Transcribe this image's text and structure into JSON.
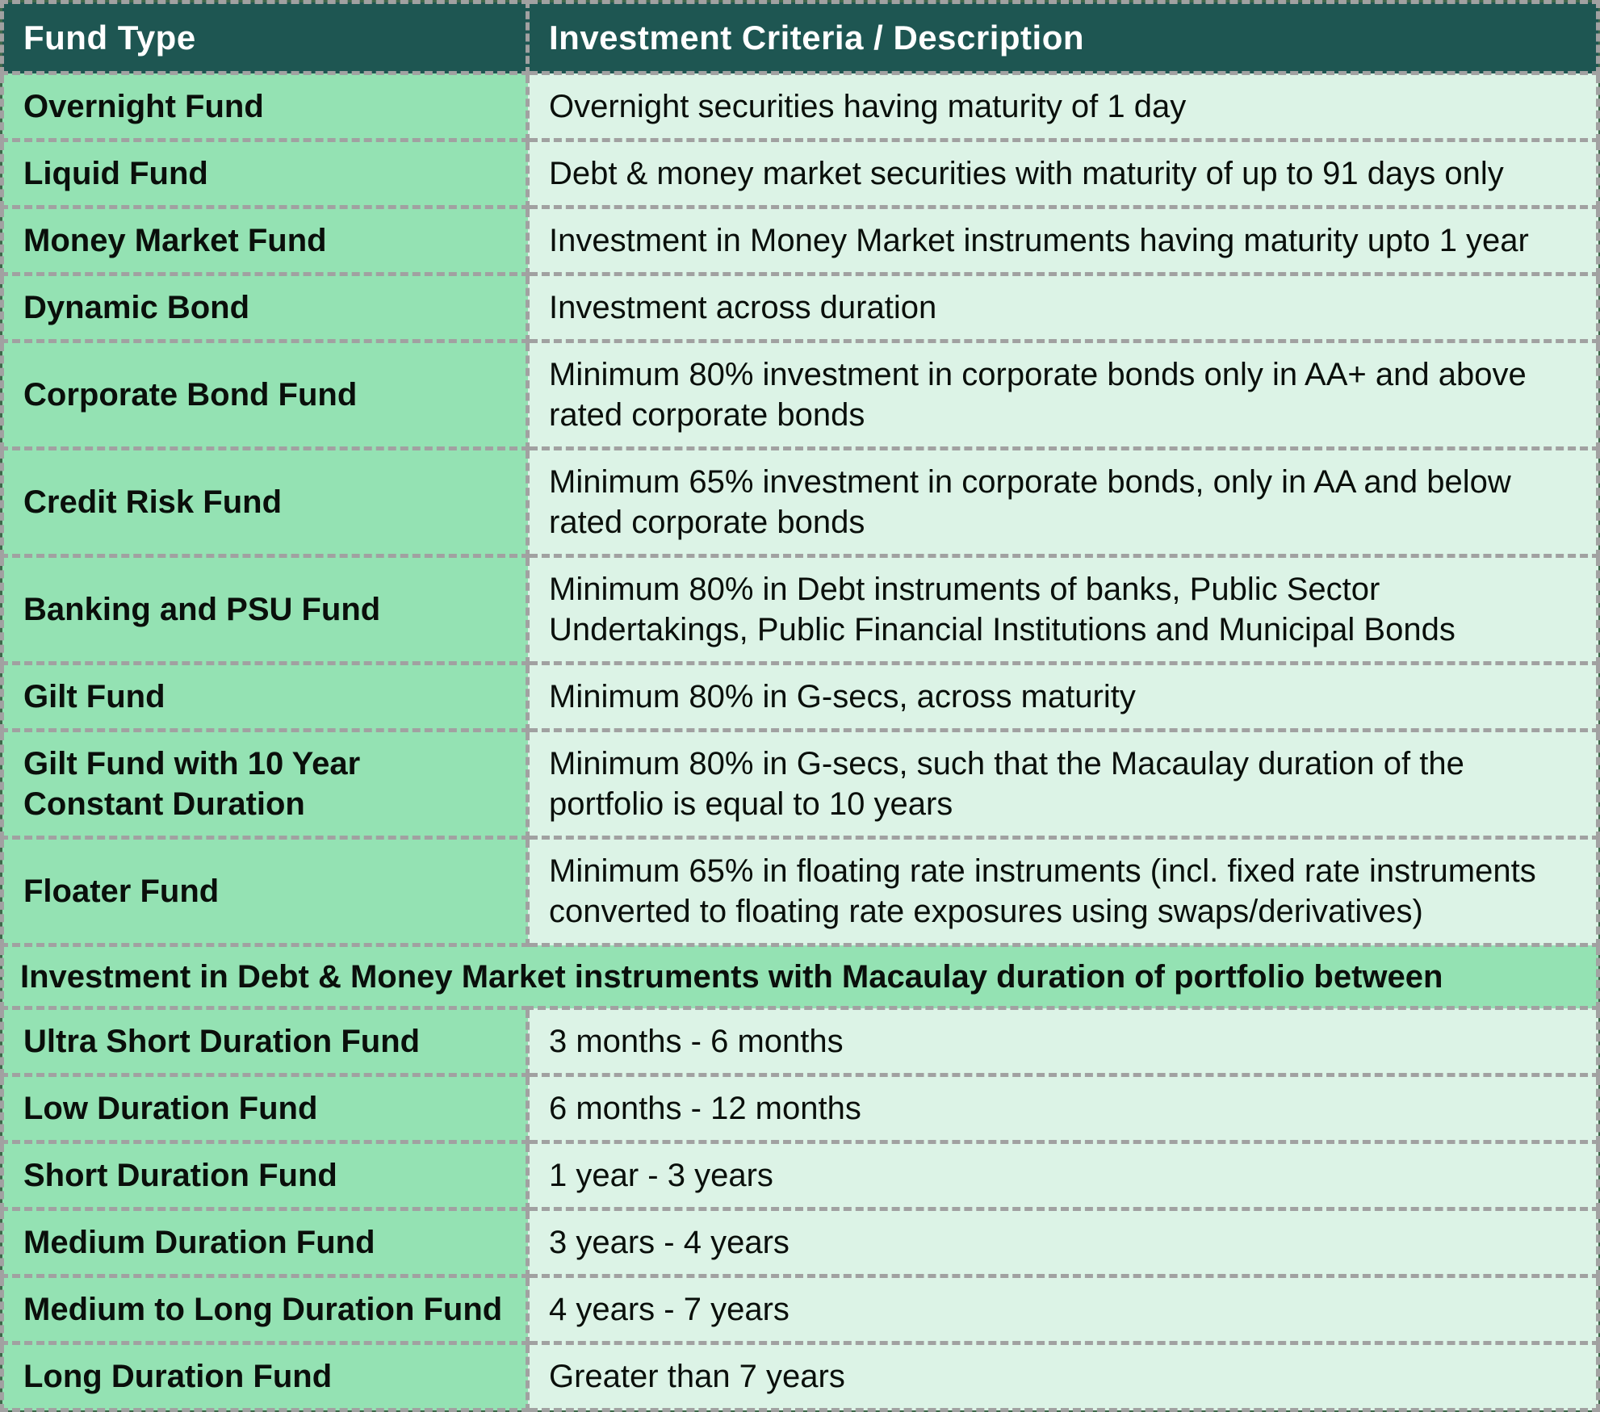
{
  "chart_data": {
    "type": "table",
    "columns": [
      "Fund Type",
      "Investment Criteria / Description"
    ],
    "rows": [
      {
        "fund": "Overnight Fund",
        "desc": "Overnight securities having maturity of 1 day"
      },
      {
        "fund": "Liquid Fund",
        "desc": "Debt & money market securities with maturity of up to 91 days only"
      },
      {
        "fund": "Money Market Fund",
        "desc": "Investment in Money Market instruments having maturity upto 1 year"
      },
      {
        "fund": "Dynamic Bond",
        "desc": "Investment across duration"
      },
      {
        "fund": "Corporate Bond Fund",
        "desc": "Minimum 80% investment in corporate bonds only in AA+ and above rated corporate bonds"
      },
      {
        "fund": "Credit Risk Fund",
        "desc": "Minimum 65% investment in corporate bonds, only in AA and below rated corporate bonds"
      },
      {
        "fund": "Banking and PSU Fund",
        "desc": "Minimum 80% in Debt instruments of banks, Public Sector Undertakings, Public Financial Institutions and Municipal Bonds"
      },
      {
        "fund": "Gilt Fund",
        "desc": "Minimum 80% in G-secs, across maturity"
      },
      {
        "fund": "Gilt Fund with 10 Year Constant Duration",
        "desc": "Minimum 80% in G-secs, such that the Macaulay duration of the portfolio is equal to 10 years"
      },
      {
        "fund": "Floater Fund",
        "desc": "Minimum 65% in floating rate instruments (incl. fixed rate instruments converted to floating rate exposures using swaps/derivatives)"
      }
    ],
    "section_header": "Investment in Debt & Money Market instruments with Macaulay duration of portfolio between",
    "duration_rows": [
      {
        "fund": "Ultra Short Duration Fund",
        "desc": "3 months - 6 months"
      },
      {
        "fund": "Low Duration Fund",
        "desc": "6 months - 12 months"
      },
      {
        "fund": "Short Duration Fund",
        "desc": "1 year - 3 years"
      },
      {
        "fund": "Medium Duration Fund",
        "desc": "3 years - 4 years"
      },
      {
        "fund": "Medium to Long Duration Fund",
        "desc": "4 years - 7 years"
      },
      {
        "fund": "Long Duration Fund",
        "desc": "Greater than 7 years"
      }
    ],
    "layout": {
      "grid": "dashed",
      "legend": "none"
    }
  },
  "colors": {
    "header_bg": "#1e5652",
    "header_text": "#ffffff",
    "fund_column_bg": "#94e2b3",
    "description_column_bg": "#dcf3e6",
    "section_row_bg": "#94e2b3",
    "border_dash": "#a1a1a1",
    "canvas_bg": "#3f684a",
    "body_text": "#0a0f0b"
  }
}
